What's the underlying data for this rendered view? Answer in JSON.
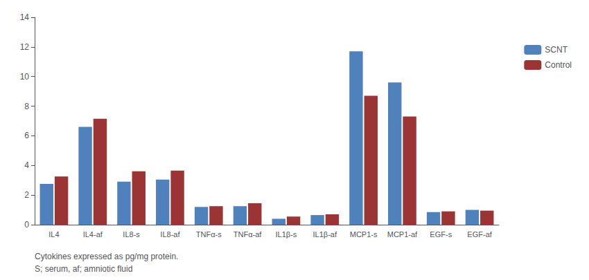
{
  "chart_data": {
    "type": "bar",
    "categories": [
      "IL4",
      "IL4-af",
      "IL8-s",
      "IL8-af",
      "TNFα-s",
      "TNFα-af",
      "IL1β-s",
      "IL1β-af",
      "MCP1-s",
      "MCP1-af",
      "EGF-s",
      "EGF-af"
    ],
    "series": [
      {
        "name": "SCNT",
        "color": "#4f81bd",
        "values": [
          2.75,
          6.6,
          2.9,
          3.05,
          1.2,
          1.25,
          0.4,
          0.65,
          11.7,
          9.6,
          0.85,
          1.0
        ]
      },
      {
        "name": "Control",
        "color": "#9b3535",
        "values": [
          3.25,
          7.15,
          3.6,
          3.65,
          1.25,
          1.45,
          0.55,
          0.7,
          8.7,
          7.3,
          0.9,
          0.95
        ]
      }
    ],
    "ylim": [
      0,
      14
    ],
    "yticks": [
      0,
      2,
      4,
      6,
      8,
      10,
      12,
      14
    ],
    "grid": false,
    "legend": "right",
    "annotations": [
      "Cytokines expressed as pg/mg protein.",
      "S; serum, af; amniotic fluid"
    ]
  }
}
